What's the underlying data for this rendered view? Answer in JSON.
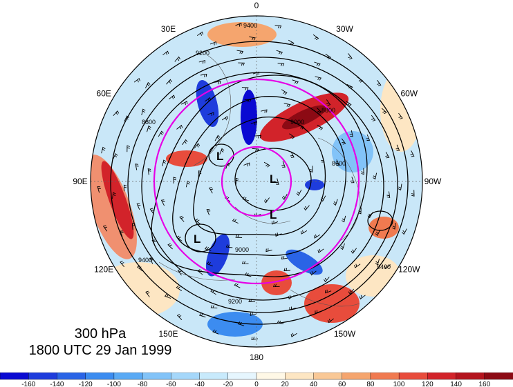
{
  "map": {
    "longitude_labels": [
      {
        "text": "0",
        "angle": 0
      },
      {
        "text": "30W",
        "angle": 30
      },
      {
        "text": "60W",
        "angle": 60
      },
      {
        "text": "90W",
        "angle": 90
      },
      {
        "text": "120W",
        "angle": 120
      },
      {
        "text": "150W",
        "angle": 150
      },
      {
        "text": "180",
        "angle": 180
      },
      {
        "text": "150E",
        "angle": 210
      },
      {
        "text": "120E",
        "angle": 240
      },
      {
        "text": "90E",
        "angle": 270
      },
      {
        "text": "60E",
        "angle": 300
      },
      {
        "text": "30E",
        "angle": 330
      }
    ],
    "contour_labels": [
      "9400",
      "9200",
      "9000",
      "8800",
      "8600",
      "9400",
      "9200",
      "9000",
      "9400",
      "8800"
    ],
    "low_markers": [
      "L",
      "L",
      "L",
      "L"
    ],
    "highlight_color": "#e600e6"
  },
  "title": {
    "level": "300 hPa",
    "time": "1800 UTC 29 Jan 1999"
  },
  "colorbar": {
    "tick_labels": [
      "-160",
      "-140",
      "-120",
      "-100",
      "-80",
      "-60",
      "-40",
      "-20",
      "0",
      "20",
      "40",
      "60",
      "80",
      "100",
      "120",
      "140",
      "160"
    ],
    "colors": [
      "#0a0ad2",
      "#1e3cdc",
      "#2a64e6",
      "#3c8cf0",
      "#5aaaf5",
      "#82c3f8",
      "#a5d7fa",
      "#c8eafc",
      "#e6f6fe",
      "#fff8e6",
      "#fde6c3",
      "#f9c896",
      "#f5a56e",
      "#f07a50",
      "#e84c3c",
      "#d2232a",
      "#b4141e",
      "#8c0a14"
    ]
  }
}
